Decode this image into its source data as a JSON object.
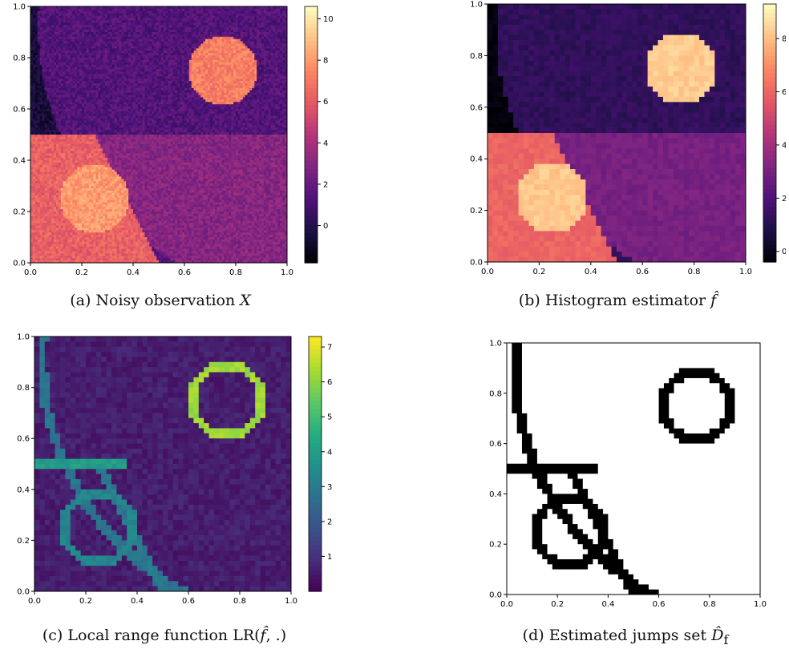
{
  "colors": {
    "magma": [
      "#000004",
      "#1c1044",
      "#4f127b",
      "#812581",
      "#b5367a",
      "#e55964",
      "#fb8761",
      "#fec287",
      "#fcfdbf"
    ],
    "viridis": [
      "#440154",
      "#472d7b",
      "#3b528b",
      "#2c728e",
      "#21918c",
      "#28ae80",
      "#5ec962",
      "#addc30",
      "#fde725"
    ],
    "jump": "#000000"
  },
  "chart_data": [
    {
      "id": "a",
      "type": "heatmap",
      "caption_text": "(a) Noisy observation ",
      "caption_symbol": "X",
      "colormap": "magma",
      "xlim": [
        0,
        1
      ],
      "ylim": [
        0,
        1
      ],
      "xticks": [
        "0.0",
        "0.2",
        "0.4",
        "0.6",
        "0.8",
        "1.0"
      ],
      "yticks": [
        "0.0",
        "0.2",
        "0.4",
        "0.6",
        "0.8",
        "1.0"
      ],
      "colorbar": {
        "min": -1.8,
        "max": 10.6,
        "ticks": [
          "0",
          "2",
          "4",
          "6",
          "8",
          "10"
        ],
        "tick_values": [
          0,
          2,
          4,
          6,
          8,
          10
        ]
      },
      "regions": {
        "top_left_corner": -0.5,
        "upper_band": 1.4,
        "lower_band": 3.0,
        "lower_left_block": 6.2,
        "small_disk": 8.0,
        "large_disk": 7.2
      }
    },
    {
      "id": "b",
      "type": "heatmap",
      "caption_text": "(b) Histogram estimator ",
      "caption_symbol": "f̂",
      "colormap": "magma",
      "xlim": [
        0,
        1
      ],
      "ylim": [
        0,
        1
      ],
      "xticks": [
        "0.0",
        "0.2",
        "0.4",
        "0.6",
        "0.8",
        "1.0"
      ],
      "yticks": [
        "0.0",
        "0.2",
        "0.4",
        "0.6",
        "0.8",
        "1.0"
      ],
      "colorbar": {
        "min": -0.4,
        "max": 9.3,
        "ticks": [
          "0",
          "2",
          "4",
          "6",
          "8"
        ],
        "tick_values": [
          0,
          2,
          4,
          6,
          8
        ]
      },
      "regions": {
        "top_left_corner": -0.3,
        "upper_band": 1.3,
        "lower_band": 3.0,
        "lower_left_block": 6.0,
        "small_disk": 8.2,
        "large_disk": 8.3
      }
    },
    {
      "id": "c",
      "type": "heatmap",
      "caption_text": "(c) Local range function LR(",
      "caption_symbol": "f̂",
      "caption_suffix": ", .)",
      "colormap": "viridis",
      "xlim": [
        0,
        1
      ],
      "ylim": [
        0,
        1
      ],
      "xticks": [
        "0.0",
        "0.2",
        "0.4",
        "0.6",
        "0.8",
        "1.0"
      ],
      "yticks": [
        "0.0",
        "0.2",
        "0.4",
        "0.6",
        "0.8",
        "1.0"
      ],
      "colorbar": {
        "min": 0.0,
        "max": 7.3,
        "ticks": [
          "1",
          "2",
          "3",
          "4",
          "5",
          "6",
          "7"
        ],
        "tick_values": [
          1,
          2,
          3,
          4,
          5,
          6,
          7
        ]
      },
      "edge_values": {
        "background": 0.3,
        "curve": 2.8,
        "horizontal_segment": 4.0,
        "lower_diagonal": 2.9,
        "small_circle": 3.3,
        "large_circle": 6.2
      }
    },
    {
      "id": "d",
      "type": "heatmap",
      "caption_text": "(d) Estimated jumps set ",
      "caption_symbol": "D̂",
      "caption_sub": "f",
      "colormap": "binary",
      "xlim": [
        0,
        1
      ],
      "ylim": [
        0,
        1
      ],
      "xticks": [
        "0.0",
        "0.2",
        "0.4",
        "0.6",
        "0.8",
        "1.0"
      ],
      "yticks": [
        "0.0",
        "0.2",
        "0.4",
        "0.6",
        "0.8",
        "1.0"
      ]
    }
  ]
}
